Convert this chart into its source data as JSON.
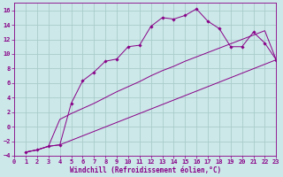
{
  "xlabel": "Windchill (Refroidissement éolien,°C)",
  "bg_color": "#cce8e8",
  "grid_color": "#aacccc",
  "line_color": "#880088",
  "spine_color": "#880088",
  "xlim": [
    0,
    23
  ],
  "ylim": [
    -4,
    17
  ],
  "xticks": [
    0,
    1,
    2,
    3,
    4,
    5,
    6,
    7,
    8,
    9,
    10,
    11,
    12,
    13,
    14,
    15,
    16,
    17,
    18,
    19,
    20,
    21,
    22,
    23
  ],
  "yticks": [
    -4,
    -2,
    0,
    2,
    4,
    6,
    8,
    10,
    12,
    14,
    16
  ],
  "line1_x": [
    1,
    2,
    3,
    4,
    5,
    6,
    7,
    8,
    9,
    10,
    11,
    12,
    13,
    14,
    15,
    16,
    17,
    18,
    19,
    20,
    21,
    22,
    23
  ],
  "line1_y": [
    -3.5,
    -3.2,
    -2.7,
    -2.5,
    3.2,
    6.3,
    7.5,
    9.0,
    9.3,
    11.0,
    11.2,
    13.8,
    15.0,
    14.8,
    15.3,
    16.2,
    14.5,
    13.5,
    11.0,
    11.0,
    13.0,
    11.5,
    9.2
  ],
  "line2_x": [
    1,
    2,
    3,
    4,
    5,
    6,
    7,
    8,
    9,
    10,
    11,
    12,
    13,
    14,
    15,
    16,
    17,
    18,
    19,
    20,
    21,
    22,
    23
  ],
  "line2_y": [
    -3.5,
    -3.2,
    -2.7,
    1.0,
    1.8,
    2.5,
    3.2,
    4.0,
    4.8,
    5.5,
    6.2,
    7.0,
    7.7,
    8.3,
    9.0,
    9.6,
    10.2,
    10.8,
    11.4,
    12.0,
    12.6,
    13.2,
    9.2
  ],
  "line3_x": [
    1,
    2,
    3,
    4,
    23
  ],
  "line3_y": [
    -3.5,
    -3.2,
    -2.7,
    -2.5,
    9.2
  ],
  "tick_fontsize": 5.0,
  "xlabel_fontsize": 5.5
}
